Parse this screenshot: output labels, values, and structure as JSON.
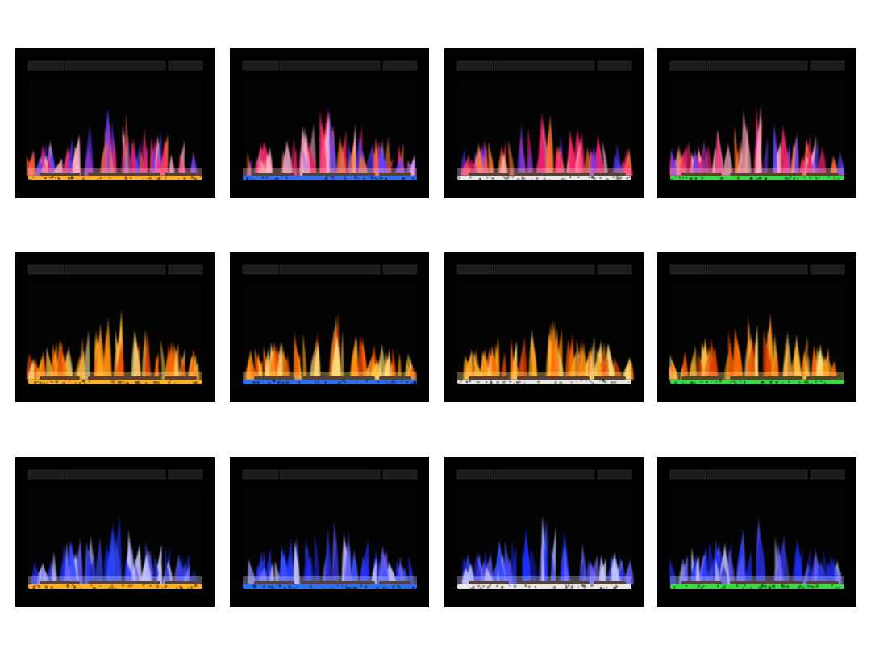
{
  "grid": {
    "rows": [
      {
        "flame_style": "multicolor",
        "flame_colors": [
          "#ff2a6a",
          "#e0206a",
          "#5a3cff",
          "#ff7a30",
          "#ffb0c8"
        ]
      },
      {
        "flame_style": "orange",
        "flame_colors": [
          "#ff6a00",
          "#ff9a10",
          "#ffc040",
          "#e04000",
          "#ffe080"
        ]
      },
      {
        "flame_style": "blue",
        "flame_colors": [
          "#2030ff",
          "#3a50ff",
          "#6a60ff",
          "#1a20c0",
          "#c8c8ff"
        ]
      }
    ],
    "columns": [
      {
        "ember_bed": "amber",
        "ember_color": "#ffb020"
      },
      {
        "ember_bed": "blue",
        "ember_color": "#2a70ff"
      },
      {
        "ember_bed": "white",
        "ember_color": "#e8e8e8"
      },
      {
        "ember_bed": "green",
        "ember_color": "#30e040"
      }
    ]
  }
}
